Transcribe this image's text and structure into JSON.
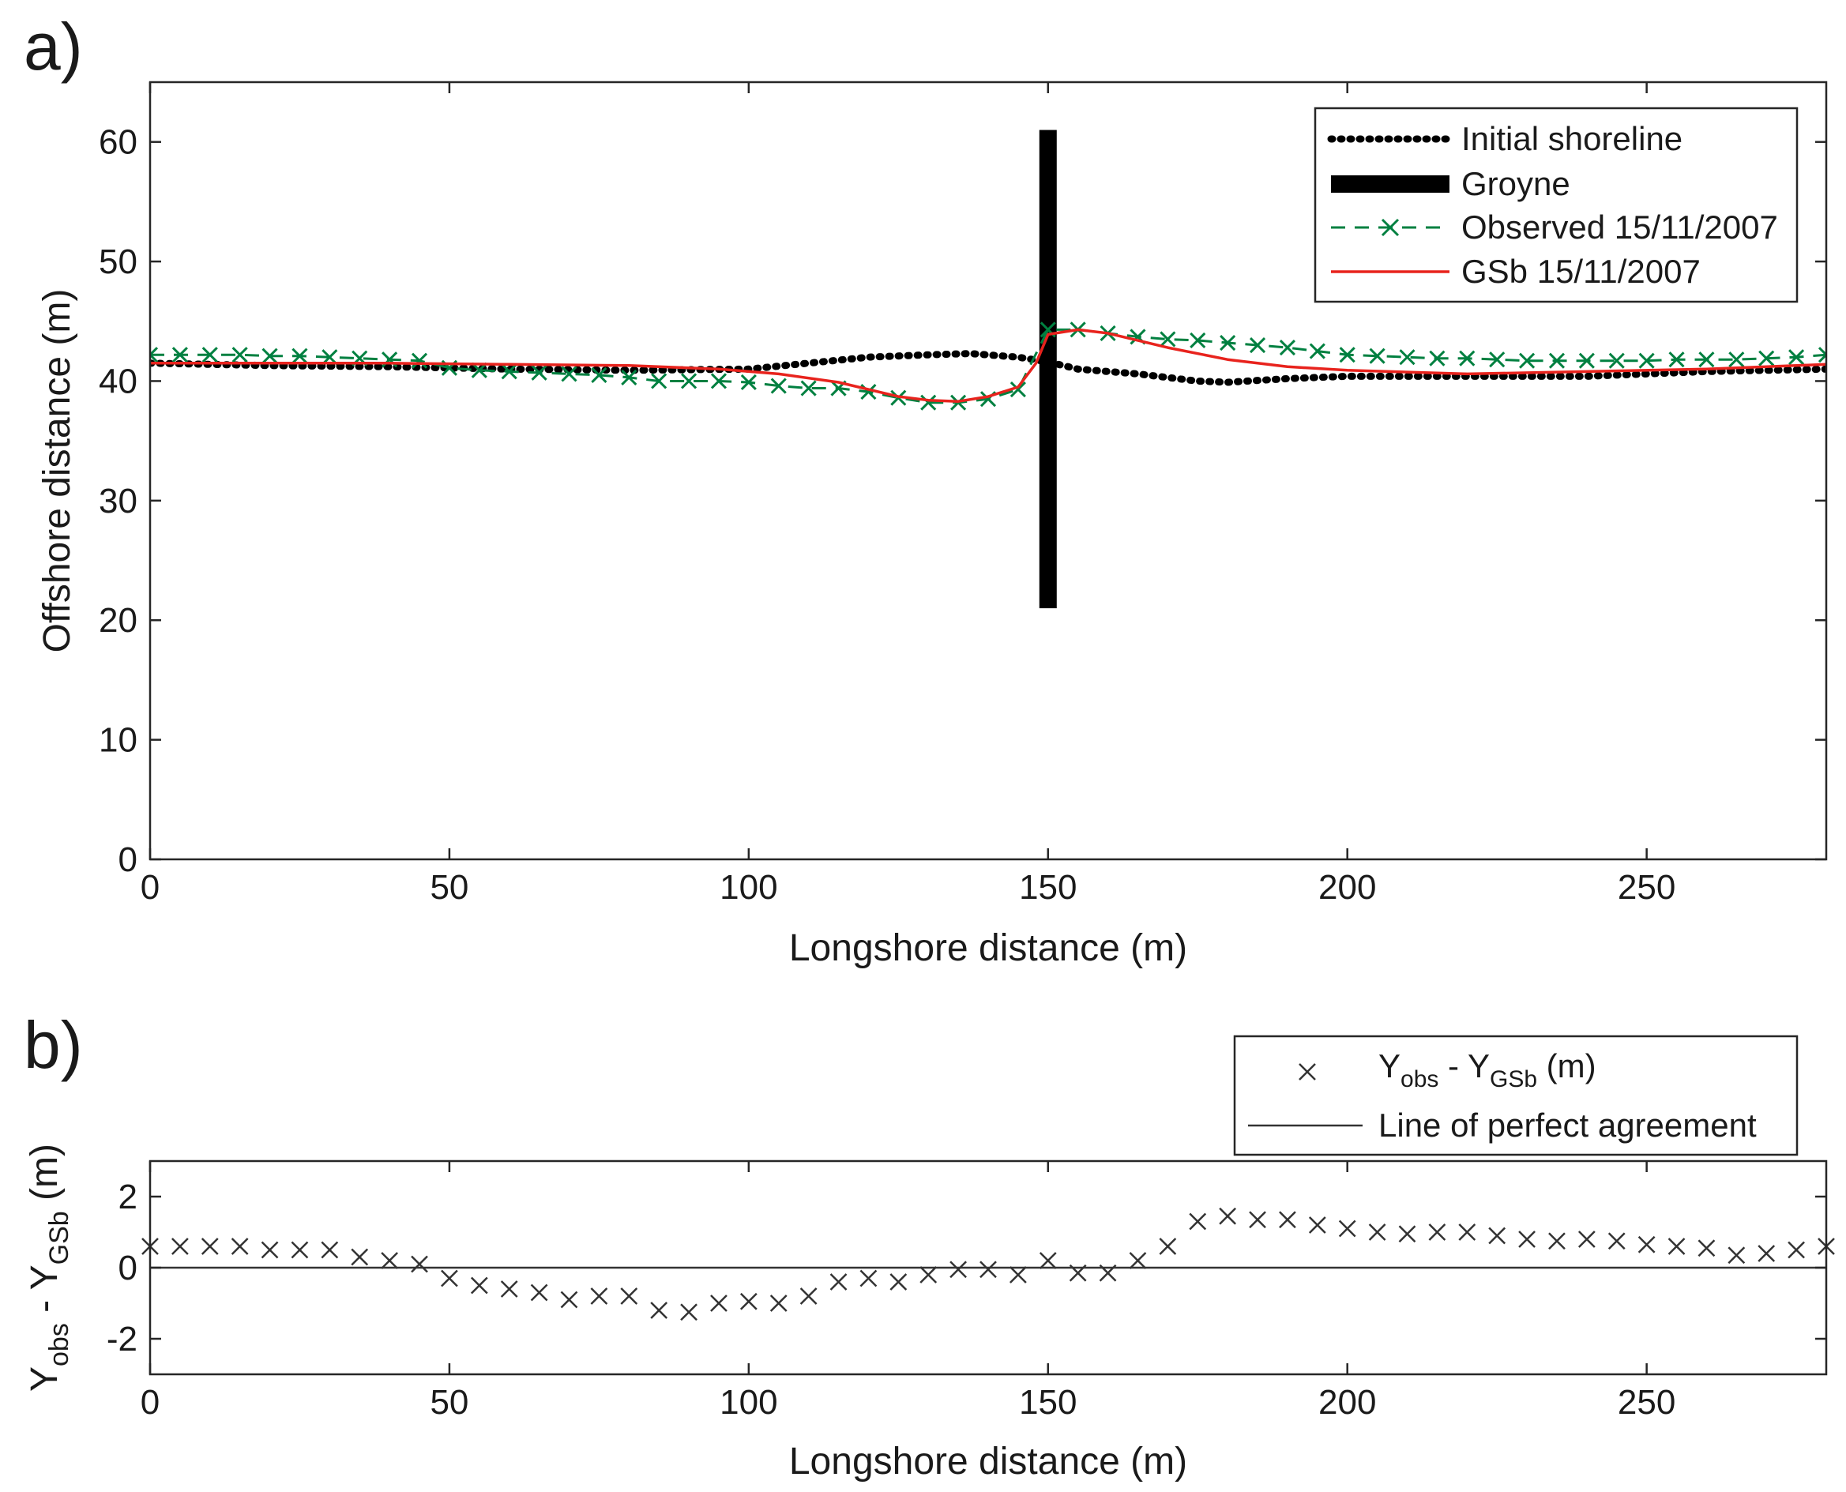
{
  "chart_data": [
    {
      "panel_label": "a)",
      "type": "line",
      "xlabel": "Longshore distance (m)",
      "ylabel": "Offshore distance (m)",
      "xlim": [
        0,
        280
      ],
      "ylim": [
        0,
        65
      ],
      "xticks": [
        0,
        50,
        100,
        150,
        200,
        250
      ],
      "yticks": [
        0,
        10,
        20,
        30,
        40,
        50,
        60
      ],
      "grid": false,
      "legend_position": "top-right",
      "series": [
        {
          "name": "Initial shoreline",
          "style": "dotted",
          "color": "#000000",
          "x": [
            0,
            20,
            40,
            60,
            80,
            100,
            110,
            120,
            130,
            137,
            145,
            150,
            155,
            165,
            175,
            180,
            190,
            200,
            220,
            240,
            260,
            280
          ],
          "y": [
            41.5,
            41.3,
            41.2,
            41.0,
            40.9,
            41.0,
            41.5,
            42.0,
            42.2,
            42.3,
            42.0,
            41.6,
            41.0,
            40.6,
            40.0,
            39.9,
            40.2,
            40.4,
            40.4,
            40.4,
            40.8,
            41.0
          ]
        },
        {
          "name": "Groyne",
          "style": "bar",
          "color": "#000000",
          "x": [
            150,
            150
          ],
          "y": [
            21,
            61
          ]
        },
        {
          "name": "Observed 15/11/2007",
          "style": "dashed-x",
          "color": "#008040",
          "x": [
            0,
            5,
            10,
            15,
            20,
            25,
            30,
            35,
            40,
            45,
            50,
            55,
            60,
            65,
            70,
            75,
            80,
            85,
            90,
            95,
            100,
            105,
            110,
            115,
            120,
            125,
            130,
            135,
            140,
            145,
            150,
            155,
            160,
            165,
            170,
            175,
            180,
            185,
            190,
            195,
            200,
            205,
            210,
            215,
            220,
            225,
            230,
            235,
            240,
            245,
            250,
            255,
            260,
            265,
            270,
            275,
            280
          ],
          "y": [
            42.2,
            42.2,
            42.2,
            42.2,
            42.1,
            42.1,
            42.0,
            41.9,
            41.8,
            41.7,
            41.1,
            40.9,
            40.8,
            40.7,
            40.6,
            40.5,
            40.3,
            40.0,
            40.0,
            40.0,
            39.9,
            39.6,
            39.4,
            39.4,
            39.1,
            38.6,
            38.2,
            38.2,
            38.5,
            39.3,
            44.3,
            44.3,
            44.0,
            43.7,
            43.5,
            43.4,
            43.2,
            43.0,
            42.8,
            42.5,
            42.2,
            42.1,
            42.0,
            41.9,
            41.9,
            41.8,
            41.7,
            41.7,
            41.7,
            41.7,
            41.7,
            41.8,
            41.8,
            41.8,
            41.9,
            42.0,
            42.2
          ]
        },
        {
          "name": "GSb 15/11/2007",
          "style": "solid",
          "color": "#e8231d",
          "x": [
            0,
            20,
            40,
            60,
            80,
            95,
            105,
            115,
            125,
            130,
            135,
            140,
            145,
            148,
            150,
            155,
            160,
            170,
            180,
            190,
            200,
            220,
            240,
            260,
            280
          ],
          "y": [
            41.5,
            41.5,
            41.5,
            41.4,
            41.3,
            41.0,
            40.6,
            39.9,
            38.7,
            38.4,
            38.3,
            38.7,
            39.5,
            41.5,
            43.9,
            44.3,
            44.0,
            42.8,
            41.8,
            41.2,
            40.9,
            40.6,
            40.8,
            41.0,
            41.4
          ]
        }
      ]
    },
    {
      "panel_label": "b)",
      "type": "scatter",
      "xlabel": "Longshore distance (m)",
      "ylabel": {
        "base1": "Y",
        "sub1": "obs",
        "sep": " - Y",
        "sub2": "GSb",
        "unit": " (m)"
      },
      "xlim": [
        0,
        280
      ],
      "ylim": [
        -3,
        3
      ],
      "xticks": [
        0,
        50,
        100,
        150,
        200,
        250
      ],
      "yticks": [
        -2,
        0,
        2
      ],
      "grid": false,
      "legend_position": "top-right",
      "series": [
        {
          "name": {
            "base1": "Y",
            "sub1": "obs",
            "sep": " - Y",
            "sub2": "GSb",
            "unit": " (m)"
          },
          "style": "x-markers",
          "color": "#333333",
          "x": [
            0,
            5,
            10,
            15,
            20,
            25,
            30,
            35,
            40,
            45,
            50,
            55,
            60,
            65,
            70,
            75,
            80,
            85,
            90,
            95,
            100,
            105,
            110,
            115,
            120,
            125,
            130,
            135,
            140,
            145,
            150,
            155,
            160,
            165,
            170,
            175,
            180,
            185,
            190,
            195,
            200,
            205,
            210,
            215,
            220,
            225,
            230,
            235,
            240,
            245,
            250,
            255,
            260,
            265,
            270,
            275,
            280
          ],
          "y": [
            0.6,
            0.6,
            0.6,
            0.6,
            0.5,
            0.5,
            0.5,
            0.3,
            0.2,
            0.1,
            -0.3,
            -0.5,
            -0.6,
            -0.7,
            -0.9,
            -0.8,
            -0.8,
            -1.2,
            -1.25,
            -1.0,
            -0.95,
            -1.0,
            -0.8,
            -0.4,
            -0.3,
            -0.4,
            -0.2,
            -0.05,
            -0.05,
            -0.2,
            0.2,
            -0.15,
            -0.15,
            0.2,
            0.6,
            1.3,
            1.45,
            1.35,
            1.35,
            1.2,
            1.1,
            1.0,
            0.95,
            1.0,
            1.0,
            0.9,
            0.8,
            0.75,
            0.8,
            0.75,
            0.65,
            0.6,
            0.55,
            0.35,
            0.4,
            0.5,
            0.6
          ]
        },
        {
          "name": "Line of perfect agreement",
          "style": "solid",
          "color": "#333333",
          "x": [
            0,
            280
          ],
          "y": [
            0,
            0
          ]
        }
      ]
    }
  ]
}
